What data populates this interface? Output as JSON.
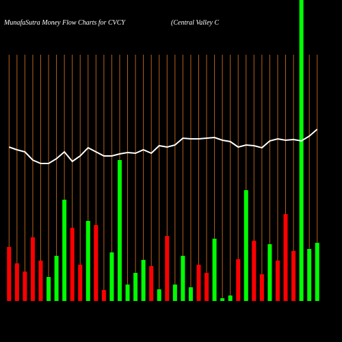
{
  "chart_data": {
    "type": "bar",
    "title": "MunafaSutra  Money Flow  Charts for CVCY",
    "subtitle": "(Central Valley C",
    "ylim": [
      0,
      440
    ],
    "grid": true,
    "grid_color": "#b8621b",
    "values": [
      79,
      55,
      43,
      93,
      59,
      35,
      66,
      148,
      107,
      53,
      117,
      111,
      16,
      71,
      206,
      24,
      41,
      60,
      51,
      17,
      95,
      24,
      66,
      20,
      53,
      41,
      91,
      4,
      8,
      61,
      162,
      88,
      39,
      83,
      59,
      127,
      73,
      440,
      76,
      85
    ],
    "colors": [
      "#ff0000",
      "#ff0000",
      "#ff0000",
      "#ff0000",
      "#ff0000",
      "#00ff00",
      "#00ff00",
      "#00ff00",
      "#ff0000",
      "#ff0000",
      "#00ff00",
      "#ff0000",
      "#ff0000",
      "#00ff00",
      "#00ff00",
      "#00ff00",
      "#00ff00",
      "#00ff00",
      "#ff0000",
      "#00ff00",
      "#ff0000",
      "#00ff00",
      "#00ff00",
      "#00ff00",
      "#ff0000",
      "#ff0000",
      "#00ff00",
      "#00ff00",
      "#00ff00",
      "#ff0000",
      "#00ff00",
      "#ff0000",
      "#ff0000",
      "#00ff00",
      "#ff0000",
      "#ff0000",
      "#ff0000",
      "#00ff00",
      "#00ff00",
      "#00ff00"
    ],
    "line_color": "#ffffff",
    "line_values": [
      225,
      221,
      218,
      206,
      201,
      201,
      208,
      218,
      204,
      212,
      224,
      218,
      212,
      212,
      215,
      217,
      216,
      221,
      216,
      227,
      225,
      228,
      238,
      237,
      237,
      238,
      239,
      235,
      233,
      225,
      228,
      227,
      224,
      234,
      237,
      235,
      236,
      234,
      241,
      251
    ]
  }
}
